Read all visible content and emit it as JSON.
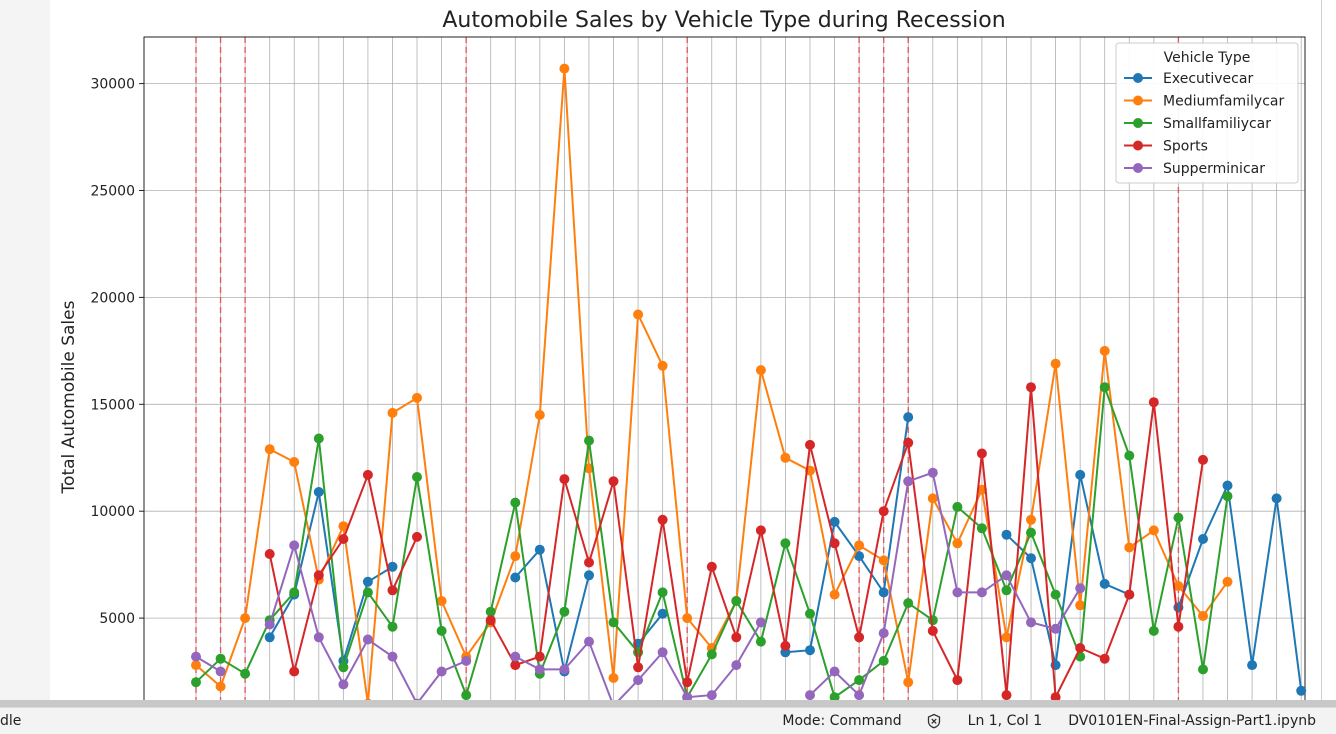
{
  "statusbar": {
    "left_text": "dle",
    "mode": "Mode: Command",
    "kernel_icon": "kernel-status-icon",
    "cursor": "Ln 1, Col 1",
    "filename": "DV0101EN-Final-Assign-Part1.ipynb"
  },
  "chart_data": {
    "type": "line",
    "title": "Automobile Sales by Vehicle Type during Recession",
    "xlabel": "",
    "ylabel": "Total Automobile Sales",
    "yticks": [
      5000,
      10000,
      15000,
      20000,
      25000,
      30000
    ],
    "ylim": [
      0,
      32000
    ],
    "grid": true,
    "legend": {
      "title": "Vehicle Type",
      "placement": "top-right"
    },
    "recession_marker_indices": [
      0,
      1,
      2,
      11,
      20,
      27,
      28,
      29,
      40
    ],
    "recession_marker_color": "#e8474c",
    "series": [
      {
        "name": "Executivecar",
        "color": "#1f77b4",
        "values": [
          null,
          null,
          null,
          4100,
          6100,
          10900,
          3000,
          6700,
          7400,
          null,
          null,
          null,
          null,
          6900,
          8200,
          2500,
          7000,
          null,
          3800,
          5200,
          null,
          null,
          null,
          null,
          3400,
          3500,
          9500,
          7900,
          6200,
          14400,
          null,
          null,
          null,
          8900,
          7800,
          2800,
          11700,
          6600,
          6100,
          null,
          5500,
          8700,
          11200,
          2800,
          10600,
          1600
        ]
      },
      {
        "name": "Mediumfamilycar",
        "color": "#ff7f0e",
        "values": [
          2800,
          1800,
          5000,
          12900,
          12300,
          6800,
          9300,
          1000,
          14600,
          15300,
          5800,
          3200,
          4800,
          7900,
          14500,
          30700,
          12000,
          2200,
          19200,
          16800,
          5000,
          3600,
          5800,
          16600,
          12500,
          11900,
          6100,
          8400,
          7700,
          2000,
          10600,
          8500,
          11000,
          4100,
          9600,
          16900,
          5600,
          17500,
          8300,
          9100,
          6500,
          5100,
          6700
        ]
      },
      {
        "name": "Smallfamiliycar",
        "color": "#2ca02c",
        "values": [
          2000,
          3100,
          2400,
          4900,
          6200,
          13400,
          2700,
          6200,
          4600,
          11600,
          4400,
          1400,
          5300,
          10400,
          2400,
          5300,
          13300,
          4800,
          3400,
          6200,
          1300,
          3300,
          5800,
          3900,
          8500,
          5200,
          1300,
          2100,
          3000,
          5700,
          4900,
          10200,
          9200,
          6300,
          9000,
          6100,
          3200,
          15800,
          12600,
          4400,
          9700,
          2600,
          10700
        ]
      },
      {
        "name": "Sports",
        "color": "#d62728",
        "values": [
          null,
          null,
          null,
          8000,
          2500,
          7000,
          8700,
          11700,
          6300,
          8800,
          null,
          null,
          4900,
          2800,
          3200,
          11500,
          7600,
          11400,
          2700,
          9600,
          2000,
          7400,
          4100,
          9100,
          3700,
          13100,
          8500,
          4100,
          10000,
          13200,
          4400,
          2100,
          12700,
          1400,
          15800,
          1300,
          3600,
          3100,
          6100,
          15100,
          4600,
          12400
        ]
      },
      {
        "name": "Supperminicar",
        "color": "#9467bd",
        "values": [
          3200,
          2500,
          null,
          4700,
          8400,
          4100,
          1900,
          4000,
          3200,
          1000,
          2500,
          3000,
          null,
          3200,
          2600,
          2600,
          3900,
          900,
          2100,
          3400,
          1300,
          1400,
          2800,
          4800,
          null,
          1400,
          2500,
          1400,
          4300,
          11400,
          11800,
          6200,
          6200,
          7000,
          4800,
          4500,
          6400
        ]
      }
    ]
  }
}
